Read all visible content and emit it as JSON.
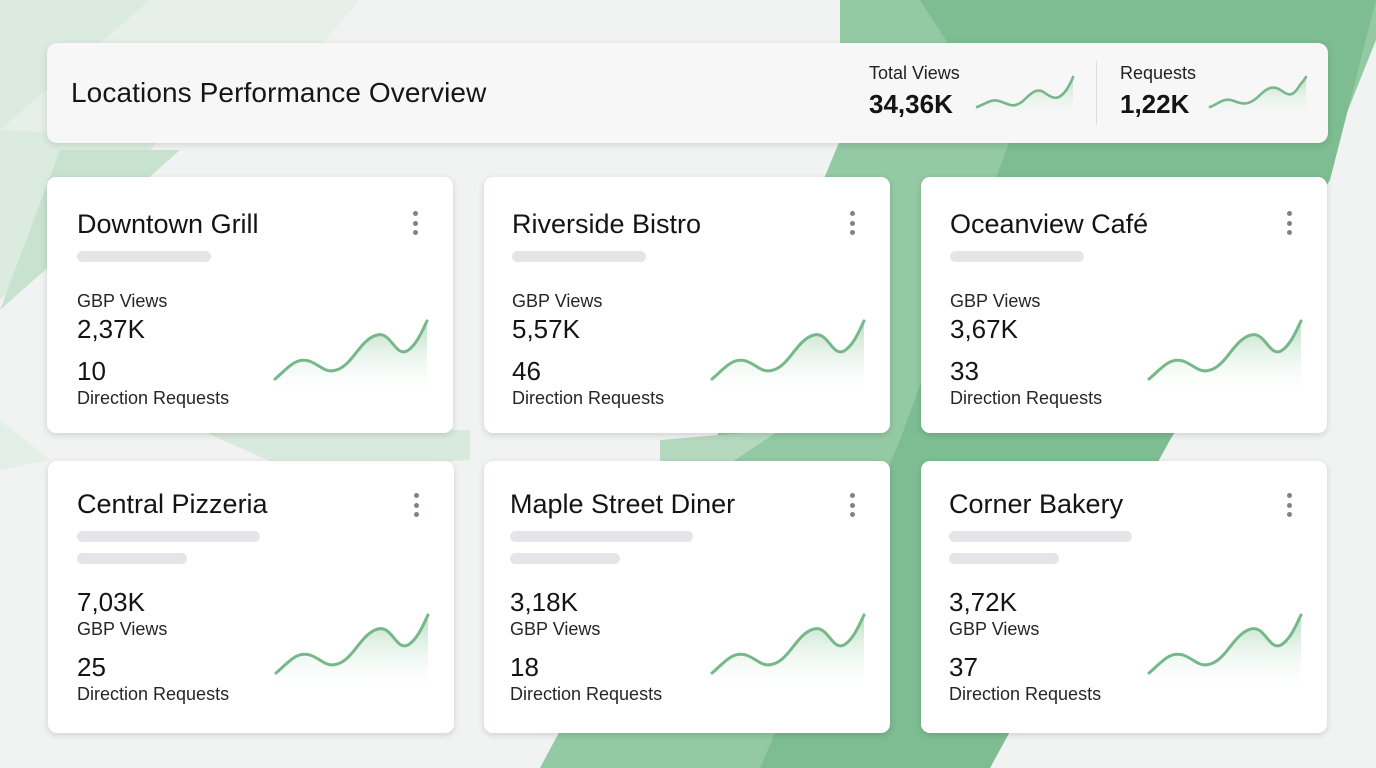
{
  "header": {
    "title": "Locations Performance Overview",
    "total_views": {
      "label": "Total Views",
      "value": "34,36K"
    },
    "requests": {
      "label": "Requests",
      "value": "1,22K"
    }
  },
  "cards": [
    {
      "name": "Downtown Grill",
      "views_label": "GBP Views",
      "views_value": "2,37K",
      "requests_value": "10",
      "requests_label": "Direction Requests"
    },
    {
      "name": "Riverside Bistro",
      "views_label": "GBP Views",
      "views_value": "5,57K",
      "requests_value": "46",
      "requests_label": "Direction Requests"
    },
    {
      "name": "Oceanview Café",
      "views_label": "GBP Views",
      "views_value": "3,67K",
      "requests_value": "33",
      "requests_label": "Direction Requests"
    },
    {
      "name": "Central Pizzeria",
      "views_label": "GBP Views",
      "views_value": "7,03K",
      "requests_value": "25",
      "requests_label": "Direction Requests"
    },
    {
      "name": "Maple Street Diner",
      "views_label": "GBP Views",
      "views_value": "3,18K",
      "requests_value": "18",
      "requests_label": "Direction Requests"
    },
    {
      "name": "Corner Bakery",
      "views_label": "GBP Views",
      "views_value": "3,72K",
      "requests_value": "37",
      "requests_label": "Direction Requests"
    }
  ],
  "icons": {
    "card_menu": "more-vertical-icon",
    "trend": "sparkline-icon"
  },
  "colors": {
    "accent_green": "#76b88a",
    "spark_fill": "#cfe8d6",
    "placeholder": "#e3e5e8",
    "background": "#f1f3f2"
  }
}
